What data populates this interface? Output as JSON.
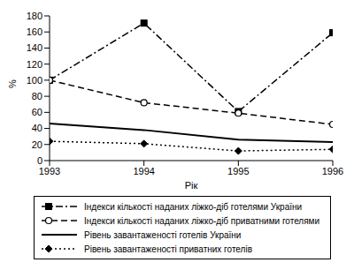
{
  "chart_data": {
    "type": "line",
    "x_label": "Рік",
    "y_label": "%",
    "x": [
      1993,
      1994,
      1995,
      1996
    ],
    "series": [
      {
        "name": "Індекси кількості наданих ліжко-діб готелями України",
        "color": "#000000",
        "marker": "square",
        "line_style": "dashdot",
        "values": [
          100,
          171,
          61,
          159
        ]
      },
      {
        "name": "Індекси кількості наданих ліжко-діб приватними готелями",
        "color": "#000000",
        "marker": "circle",
        "line_style": "dashed",
        "values": [
          100,
          72,
          59,
          45
        ]
      },
      {
        "name": "Рівень завантаженості готелів України",
        "color": "#000000",
        "marker": "none",
        "line_style": "solid",
        "values": [
          46,
          38,
          26,
          23
        ]
      },
      {
        "name": "Рівень завантаженості приватних готелів",
        "color": "#000000",
        "marker": "diamond",
        "line_style": "dotted",
        "values": [
          24,
          21,
          12,
          14
        ]
      }
    ],
    "xlim": [
      1993,
      1996
    ],
    "xticks": [
      1993,
      1994,
      1995,
      1996
    ],
    "ylim": [
      0,
      180
    ],
    "yticks": [
      0,
      20,
      40,
      60,
      80,
      100,
      120,
      140,
      160,
      180
    ],
    "grid": false,
    "legend": "bottom"
  }
}
